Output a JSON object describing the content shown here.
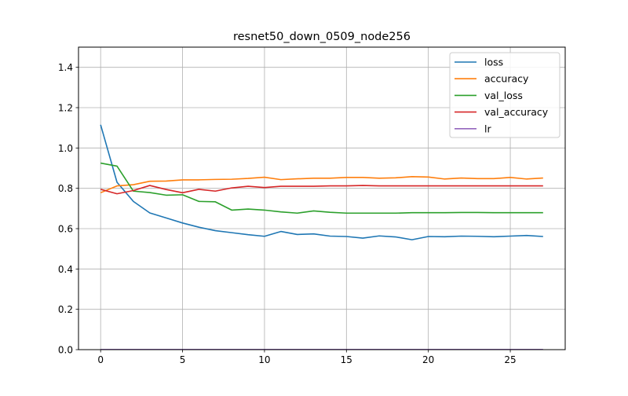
{
  "chart_data": {
    "type": "line",
    "title": "resnet50_down_0509_node256",
    "xlabel": "",
    "ylabel": "",
    "xlim": [
      -1.35,
      28.35
    ],
    "ylim": [
      0.0,
      1.5
    ],
    "xticks": [
      0,
      5,
      10,
      15,
      20,
      25
    ],
    "yticks": [
      0.0,
      0.2,
      0.4,
      0.6,
      0.8,
      1.0,
      1.2,
      1.4
    ],
    "grid": true,
    "legend_position": "top-right",
    "x": [
      0,
      1,
      2,
      3,
      4,
      5,
      6,
      7,
      8,
      9,
      10,
      11,
      12,
      13,
      14,
      15,
      16,
      17,
      18,
      19,
      20,
      21,
      22,
      23,
      24,
      25,
      26,
      27
    ],
    "series": [
      {
        "name": "loss",
        "color": "#1f77b4",
        "values": [
          1.115,
          0.83,
          0.735,
          0.678,
          0.653,
          0.628,
          0.607,
          0.59,
          0.58,
          0.57,
          0.562,
          0.586,
          0.571,
          0.574,
          0.563,
          0.561,
          0.553,
          0.564,
          0.559,
          0.545,
          0.561,
          0.56,
          0.563,
          0.562,
          0.56,
          0.563,
          0.566,
          0.561
        ]
      },
      {
        "name": "accuracy",
        "color": "#ff7f0e",
        "values": [
          0.778,
          0.812,
          0.818,
          0.835,
          0.836,
          0.842,
          0.842,
          0.844,
          0.845,
          0.849,
          0.855,
          0.843,
          0.847,
          0.85,
          0.85,
          0.854,
          0.854,
          0.85,
          0.852,
          0.858,
          0.856,
          0.846,
          0.851,
          0.848,
          0.848,
          0.854,
          0.846,
          0.851
        ]
      },
      {
        "name": "val_loss",
        "color": "#2ca02c",
        "values": [
          0.925,
          0.91,
          0.786,
          0.779,
          0.766,
          0.768,
          0.735,
          0.733,
          0.692,
          0.697,
          0.692,
          0.683,
          0.677,
          0.688,
          0.681,
          0.677,
          0.677,
          0.677,
          0.677,
          0.679,
          0.679,
          0.679,
          0.68,
          0.68,
          0.679,
          0.679,
          0.679,
          0.679
        ]
      },
      {
        "name": "val_accuracy",
        "color": "#d62728",
        "values": [
          0.795,
          0.773,
          0.789,
          0.814,
          0.794,
          0.778,
          0.795,
          0.786,
          0.802,
          0.81,
          0.804,
          0.81,
          0.81,
          0.81,
          0.812,
          0.812,
          0.814,
          0.812,
          0.812,
          0.812,
          0.812,
          0.812,
          0.812,
          0.812,
          0.812,
          0.812,
          0.812,
          0.812
        ]
      },
      {
        "name": "lr",
        "color": "#9467bd",
        "values": [
          0.001,
          0.001,
          0.001,
          0.001,
          0.001,
          0.001,
          0.001,
          0.001,
          0.001,
          0.001,
          0.001,
          0.001,
          0.001,
          0.001,
          0.001,
          0.001,
          0.001,
          0.001,
          0.001,
          0.001,
          0.001,
          0.001,
          0.001,
          0.001,
          0.001,
          0.001,
          0.001,
          0.001
        ]
      }
    ]
  }
}
